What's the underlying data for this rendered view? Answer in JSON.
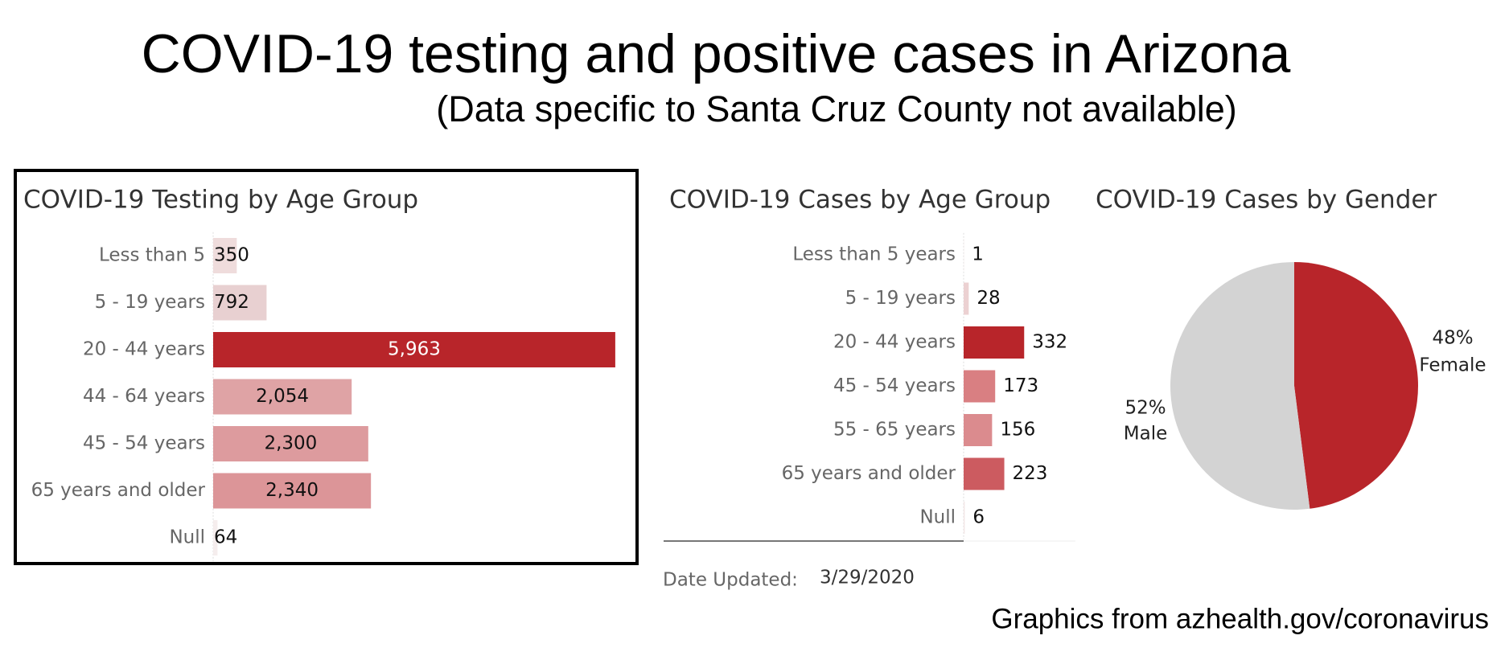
{
  "title": "COVID-19 testing and positive cases in Arizona",
  "subtitle": "(Data specific to Santa Cruz County not available)",
  "date_label": "Date Updated:",
  "date": "3/29/2020",
  "source": "Graphics from azhealth.gov/coronavirus",
  "chart_data": [
    {
      "type": "hbar",
      "title": "COVID-19 Testing by Age Group",
      "categories": [
        "Less than 5",
        "5 - 19 years",
        "20 - 44 years",
        "44 - 64 years",
        "45 - 54 years",
        "65 years and older",
        "Null"
      ],
      "values": [
        350,
        792,
        5963,
        2054,
        2300,
        2340,
        64
      ],
      "value_labels": [
        "350",
        "792",
        "5,963",
        "2,054",
        "2,300",
        "2,340",
        "64"
      ],
      "colors": [
        "#efdcdc",
        "#e8d0d1",
        "#b8252a",
        "#dfa3a5",
        "#dd9b9e",
        "#dc9598",
        "#f5eded"
      ],
      "xlim": [
        0,
        6000
      ]
    },
    {
      "type": "hbar",
      "title": "COVID-19 Cases by Age Group",
      "categories": [
        "Less than 5 years",
        "5 - 19 years",
        "20 - 44 years",
        "45 - 54 years",
        "55 - 65 years",
        "65 years and older",
        "Null"
      ],
      "values": [
        1,
        28,
        332,
        173,
        156,
        223,
        6
      ],
      "colors": [
        "#f3e3e3",
        "#ecd1d2",
        "#b8252a",
        "#d97f82",
        "#db8b8e",
        "#cc5b60",
        "#f3e6e6"
      ],
      "xlim": [
        0,
        600
      ]
    },
    {
      "type": "pie",
      "title": "COVID-19 Cases by Gender",
      "categories": [
        "Female",
        "Male"
      ],
      "values": [
        48,
        52
      ],
      "value_labels": [
        "48%",
        "52%"
      ],
      "colors": [
        "#b8252a",
        "#d3d3d3"
      ]
    }
  ]
}
